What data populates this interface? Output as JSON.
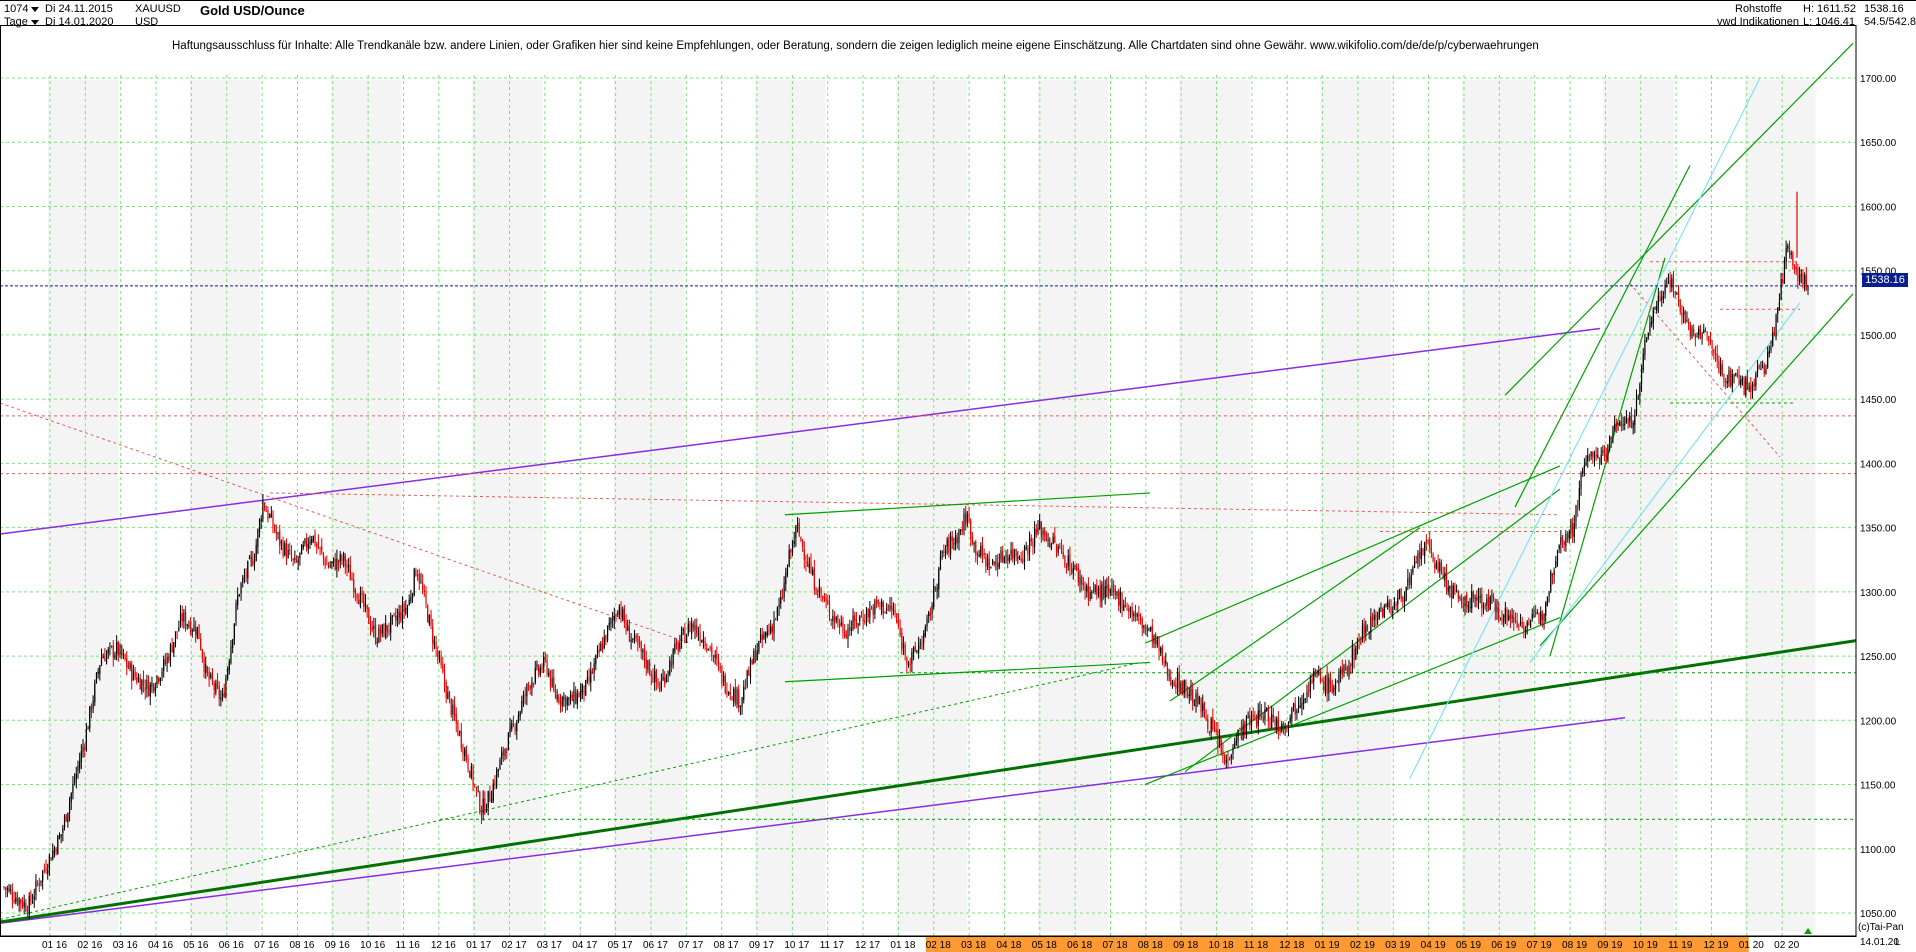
{
  "header": {
    "count": "1074",
    "start_date": "Di 24.11.2015",
    "end_date": "Di 14.01.2020",
    "period": "Tage",
    "symbol": "XAUUSD",
    "currency": "USD",
    "title": "Gold USD/Ounce",
    "category": "Rohstoffe",
    "source": "vwd Indikationen",
    "high": "H: 1611.52",
    "low": "L: 1046.41",
    "last": "1538.16",
    "range_info": "54.5/542.8"
  },
  "disclaimer": "Haftungsausschluss für Inhalte: Alle Trendkanäle bzw. andere Linien, oder Grafiken hier sind keine Empfehlungen, oder Beratung, sondern die zeigen lediglich meine eigene Einschätzung. Alle Chartdaten sind ohne Gewähr.  www.wikifolio.com/de/de/p/cyberwaehrungen",
  "footer": {
    "copyright": "(c)Tai-Pan",
    "last_date": "14.01.20",
    "axis_letter": "L"
  },
  "colors": {
    "background": "#ffffff",
    "grid": "#7fe07f",
    "up_candle": "#000000",
    "down_candle": "#e00000",
    "last_price_line": "#0a1f8f",
    "purple": "#8a2be2",
    "green": "#00a000",
    "dark_green": "#007000",
    "cyan": "#80e0f0",
    "red_dashed": "#e06060",
    "highlight_axis": "#ff9a33"
  },
  "chart_data": {
    "type": "candlestick",
    "title": "Gold USD/Ounce",
    "ylim": [
      1030,
      1735
    ],
    "y_ticks": [
      1050,
      1100,
      1150,
      1200,
      1250,
      1300,
      1350,
      1400,
      1450,
      1500,
      1550,
      1600,
      1650,
      1700
    ],
    "y_tick_labels": [
      "1050.00",
      "1100.00",
      "1150.00",
      "1200.00",
      "1250.00",
      "1300.00",
      "1350.00",
      "1400.00",
      "1450.00",
      "1500.00",
      "1550.00",
      "1600.00",
      "1650.00",
      "1700.00"
    ],
    "x_tick_labels": [
      "01 16",
      "02 16",
      "03 16",
      "04 16",
      "05 16",
      "06 16",
      "07 16",
      "08 16",
      "09 16",
      "10 16",
      "11 16",
      "12 16",
      "01 17",
      "02 17",
      "03 17",
      "04 17",
      "05 17",
      "06 17",
      "07 17",
      "08 17",
      "09 17",
      "10 17",
      "11 17",
      "12 17",
      "01 18",
      "02 18",
      "03 18",
      "04 18",
      "05 18",
      "06 18",
      "07 18",
      "08 18",
      "09 18",
      "10 18",
      "11 18",
      "12 18",
      "01 19",
      "02 19",
      "03 19",
      "04 19",
      "05 19",
      "06 19",
      "07 19",
      "08 19",
      "09 19",
      "10 19",
      "11 19",
      "12 19",
      "01 20",
      "02 20"
    ],
    "grid": true,
    "last_price": 1538.16,
    "price_path": [
      [
        0,
        1070
      ],
      [
        3,
        1055
      ],
      [
        5,
        1085
      ],
      [
        7,
        1110
      ],
      [
        10,
        1185
      ],
      [
        12,
        1250
      ],
      [
        14,
        1255
      ],
      [
        16,
        1235
      ],
      [
        18,
        1225
      ],
      [
        20,
        1245
      ],
      [
        22,
        1280
      ],
      [
        24,
        1270
      ],
      [
        25,
        1235
      ],
      [
        27,
        1215
      ],
      [
        29,
        1300
      ],
      [
        31,
        1330
      ],
      [
        32,
        1370
      ],
      [
        34,
        1340
      ],
      [
        36,
        1320
      ],
      [
        38,
        1345
      ],
      [
        40,
        1320
      ],
      [
        42,
        1325
      ],
      [
        43,
        1310
      ],
      [
        46,
        1265
      ],
      [
        48,
        1275
      ],
      [
        50,
        1290
      ],
      [
        51,
        1320
      ],
      [
        53,
        1265
      ],
      [
        55,
        1215
      ],
      [
        57,
        1175
      ],
      [
        59,
        1130
      ],
      [
        60,
        1140
      ],
      [
        62,
        1180
      ],
      [
        63,
        1195
      ],
      [
        65,
        1230
      ],
      [
        67,
        1245
      ],
      [
        68,
        1220
      ],
      [
        70,
        1215
      ],
      [
        72,
        1225
      ],
      [
        74,
        1260
      ],
      [
        76,
        1290
      ],
      [
        77,
        1270
      ],
      [
        79,
        1250
      ],
      [
        81,
        1225
      ],
      [
        83,
        1255
      ],
      [
        85,
        1275
      ],
      [
        87,
        1260
      ],
      [
        89,
        1230
      ],
      [
        91,
        1215
      ],
      [
        93,
        1255
      ],
      [
        95,
        1275
      ],
      [
        96,
        1290
      ],
      [
        97,
        1325
      ],
      [
        98,
        1350
      ],
      [
        100,
        1310
      ],
      [
        102,
        1285
      ],
      [
        104,
        1270
      ],
      [
        106,
        1280
      ],
      [
        108,
        1290
      ],
      [
        110,
        1285
      ],
      [
        111,
        1260
      ],
      [
        112,
        1245
      ],
      [
        114,
        1270
      ],
      [
        116,
        1330
      ],
      [
        118,
        1345
      ],
      [
        119,
        1360
      ],
      [
        120,
        1335
      ],
      [
        122,
        1320
      ],
      [
        124,
        1330
      ],
      [
        126,
        1330
      ],
      [
        128,
        1350
      ],
      [
        130,
        1335
      ],
      [
        132,
        1320
      ],
      [
        134,
        1300
      ],
      [
        136,
        1300
      ],
      [
        138,
        1295
      ],
      [
        140,
        1280
      ],
      [
        142,
        1265
      ],
      [
        144,
        1235
      ],
      [
        146,
        1225
      ],
      [
        148,
        1210
      ],
      [
        150,
        1185
      ],
      [
        151,
        1165
      ],
      [
        152,
        1185
      ],
      [
        154,
        1200
      ],
      [
        156,
        1205
      ],
      [
        158,
        1195
      ],
      [
        160,
        1215
      ],
      [
        162,
        1235
      ],
      [
        164,
        1225
      ],
      [
        166,
        1240
      ],
      [
        168,
        1270
      ],
      [
        170,
        1285
      ],
      [
        172,
        1290
      ],
      [
        174,
        1310
      ],
      [
        175,
        1330
      ],
      [
        176,
        1335
      ],
      [
        178,
        1310
      ],
      [
        180,
        1290
      ],
      [
        182,
        1295
      ],
      [
        184,
        1290
      ],
      [
        186,
        1280
      ],
      [
        188,
        1275
      ],
      [
        190,
        1280
      ],
      [
        191,
        1305
      ],
      [
        192,
        1335
      ],
      [
        193,
        1345
      ],
      [
        194,
        1350
      ],
      [
        195,
        1390
      ],
      [
        196,
        1410
      ],
      [
        197,
        1400
      ],
      [
        198,
        1410
      ],
      [
        199,
        1425
      ],
      [
        200,
        1435
      ],
      [
        201,
        1430
      ],
      [
        202,
        1450
      ],
      [
        203,
        1500
      ],
      [
        204,
        1520
      ],
      [
        205,
        1535
      ],
      [
        206,
        1545
      ],
      [
        207,
        1525
      ],
      [
        208,
        1510
      ],
      [
        209,
        1495
      ],
      [
        210,
        1505
      ],
      [
        211,
        1490
      ],
      [
        212,
        1475
      ],
      [
        213,
        1465
      ],
      [
        214,
        1470
      ],
      [
        215,
        1460
      ],
      [
        216,
        1462
      ],
      [
        217,
        1472
      ],
      [
        218,
        1480
      ],
      [
        219,
        1510
      ],
      [
        220,
        1550
      ],
      [
        220.5,
        1575
      ],
      [
        221,
        1560
      ],
      [
        222,
        1545
      ],
      [
        223,
        1538
      ]
    ]
  }
}
